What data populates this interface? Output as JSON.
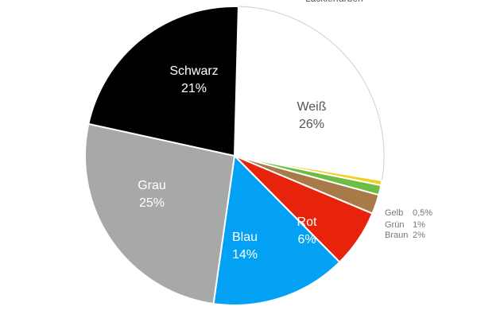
{
  "chart_data": {
    "type": "pie",
    "title": "",
    "top_text": "Lackierfarben",
    "slices": [
      {
        "key": "weiss",
        "label": "Weiß",
        "value": 26,
        "value_label": "26%",
        "color": "#ffffff",
        "text_color": "#555555",
        "label_position": "inside"
      },
      {
        "key": "gelb",
        "label": "Gelb",
        "value": 0.5,
        "value_label": "0,5%",
        "color": "#f3cf1f",
        "text_color": "#777777",
        "label_position": "outside"
      },
      {
        "key": "gruen",
        "label": "Grün",
        "value": 1,
        "value_label": "1%",
        "color": "#6bbd45",
        "text_color": "#777777",
        "label_position": "outside"
      },
      {
        "key": "braun",
        "label": "Braun",
        "value": 2,
        "value_label": "2%",
        "color": "#a77a47",
        "text_color": "#777777",
        "label_position": "outside"
      },
      {
        "key": "rot",
        "label": "Rot",
        "value": 6,
        "value_label": "6%",
        "color": "#e8230b",
        "text_color": "#ffffff",
        "label_position": "inside"
      },
      {
        "key": "blau",
        "label": "Blau",
        "value": 14,
        "value_label": "14%",
        "color": "#03a1f3",
        "text_color": "#ffffff",
        "label_position": "inside"
      },
      {
        "key": "grau",
        "label": "Grau",
        "value": 25,
        "value_label": "25%",
        "color": "#a7a9a8",
        "text_color": "#ffffff",
        "label_position": "inside"
      },
      {
        "key": "schwarz",
        "label": "Schwarz",
        "value": 21,
        "value_label": "21%",
        "color": "#000000",
        "text_color": "#ffffff",
        "label_position": "inside"
      }
    ],
    "legend": "none"
  }
}
